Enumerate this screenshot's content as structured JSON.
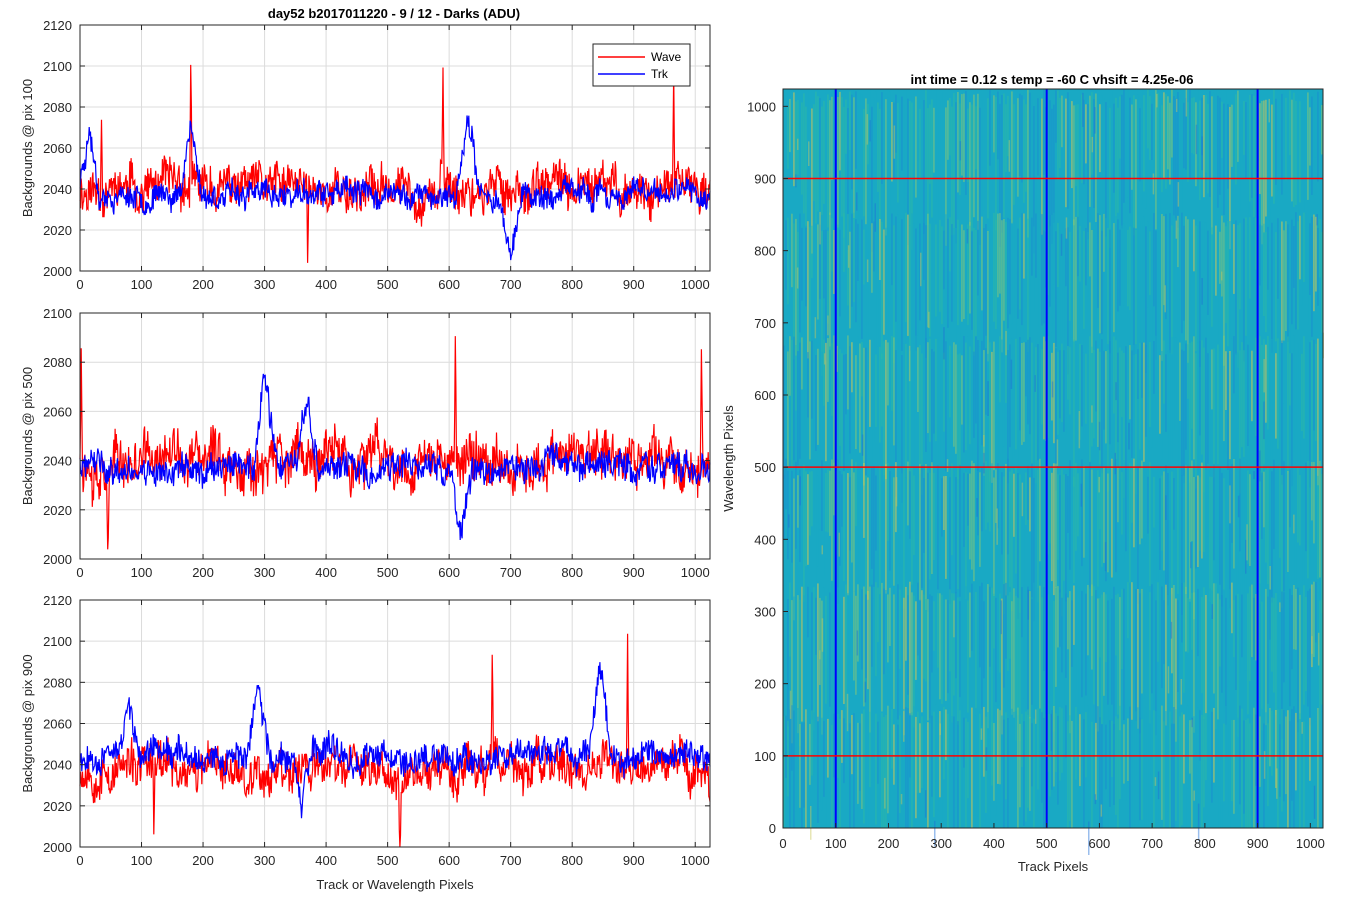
{
  "figure": {
    "left_title": "day52 b2017011220 - 9 / 12 - Darks (ADU)",
    "right_title": "int time = 0.12 s    temp = -60 C    vhsift = 4.25e-06"
  },
  "chart_data": [
    {
      "type": "line",
      "title": "day52 b2017011220 - 9 / 12 - Darks (ADU)",
      "xlabel": "",
      "ylabel": "Backgrounds @ pix 100",
      "xlim": [
        0,
        1024
      ],
      "ylim": [
        2000,
        2120
      ],
      "xticks": [
        0,
        100,
        200,
        300,
        400,
        500,
        600,
        700,
        800,
        900,
        1000
      ],
      "yticks": [
        2000,
        2020,
        2040,
        2060,
        2080,
        2100,
        2120
      ],
      "grid": true,
      "legend": "top-right",
      "series": [
        {
          "name": "Wave",
          "color": "#ff0000",
          "baseline": 2040,
          "noise": 12,
          "seed": 11,
          "features": [
            [
              180,
              2100
            ],
            [
              370,
              2000
            ],
            [
              590,
              2093
            ],
            [
              965,
              2090
            ],
            [
              35,
              2082
            ]
          ]
        },
        {
          "name": "Trk",
          "color": "#0000ff",
          "baseline": 2037,
          "noise": 7,
          "seed": 23,
          "features": [
            [
              15,
              2072
            ],
            [
              180,
              2075
            ],
            [
              630,
              2078
            ],
            [
              700,
              2006
            ]
          ]
        }
      ]
    },
    {
      "type": "line",
      "title": "",
      "xlabel": "",
      "ylabel": "Backgrounds @ pix 500",
      "xlim": [
        0,
        1024
      ],
      "ylim": [
        2000,
        2100
      ],
      "xticks": [
        0,
        100,
        200,
        300,
        400,
        500,
        600,
        700,
        800,
        900,
        1000
      ],
      "yticks": [
        2000,
        2020,
        2040,
        2060,
        2080,
        2100
      ],
      "grid": true,
      "series": [
        {
          "name": "Wave",
          "color": "#ff0000",
          "baseline": 2040,
          "noise": 12,
          "seed": 37,
          "features": [
            [
              2,
              2098
            ],
            [
              610,
              2093
            ],
            [
              1010,
              2083
            ],
            [
              45,
              2010
            ]
          ]
        },
        {
          "name": "Trk",
          "color": "#0000ff",
          "baseline": 2037,
          "noise": 7,
          "seed": 41,
          "features": [
            [
              300,
              2076
            ],
            [
              370,
              2063
            ],
            [
              620,
              2007
            ]
          ]
        }
      ]
    },
    {
      "type": "line",
      "title": "",
      "xlabel": "Track or Wavelength Pixels",
      "ylabel": "Backgrounds @ pix 900",
      "xlim": [
        0,
        1024
      ],
      "ylim": [
        2000,
        2120
      ],
      "xticks": [
        0,
        100,
        200,
        300,
        400,
        500,
        600,
        700,
        800,
        900,
        1000
      ],
      "yticks": [
        2000,
        2020,
        2040,
        2060,
        2080,
        2100,
        2120
      ],
      "grid": true,
      "series": [
        {
          "name": "Wave",
          "color": "#ff0000",
          "baseline": 2038,
          "noise": 12,
          "seed": 53,
          "features": [
            [
              890,
              2105
            ],
            [
              670,
              2092
            ],
            [
              520,
              2002
            ],
            [
              120,
              2008
            ]
          ]
        },
        {
          "name": "Trk",
          "color": "#0000ff",
          "baseline": 2045,
          "noise": 8,
          "seed": 67,
          "features": [
            [
              290,
              2080
            ],
            [
              845,
              2089
            ],
            [
              80,
              2071
            ],
            [
              360,
              2015
            ]
          ]
        }
      ]
    },
    {
      "type": "heatmap",
      "title": "int time = 0.12 s    temp = -60 C    vhsift = 4.25e-06",
      "xlabel": "Track Pixels",
      "ylabel": "Wavelength Pixels",
      "xlim": [
        0,
        1024
      ],
      "ylim": [
        0,
        1024
      ],
      "xticks": [
        0,
        100,
        200,
        300,
        400,
        500,
        600,
        700,
        800,
        900,
        1000
      ],
      "yticks": [
        0,
        100,
        200,
        300,
        400,
        500,
        600,
        700,
        800,
        900,
        1000
      ],
      "colormap": [
        "#1f6fd6",
        "#1a8fd0",
        "#19a9c4",
        "#2cb8a8",
        "#7fc77a",
        "#c9c75a"
      ],
      "vertical_lines": {
        "values": [
          100,
          500,
          900
        ],
        "color": "#0000ff"
      },
      "horizontal_lines": {
        "values": [
          100,
          500,
          900
        ],
        "color": "#ff0000"
      }
    }
  ]
}
